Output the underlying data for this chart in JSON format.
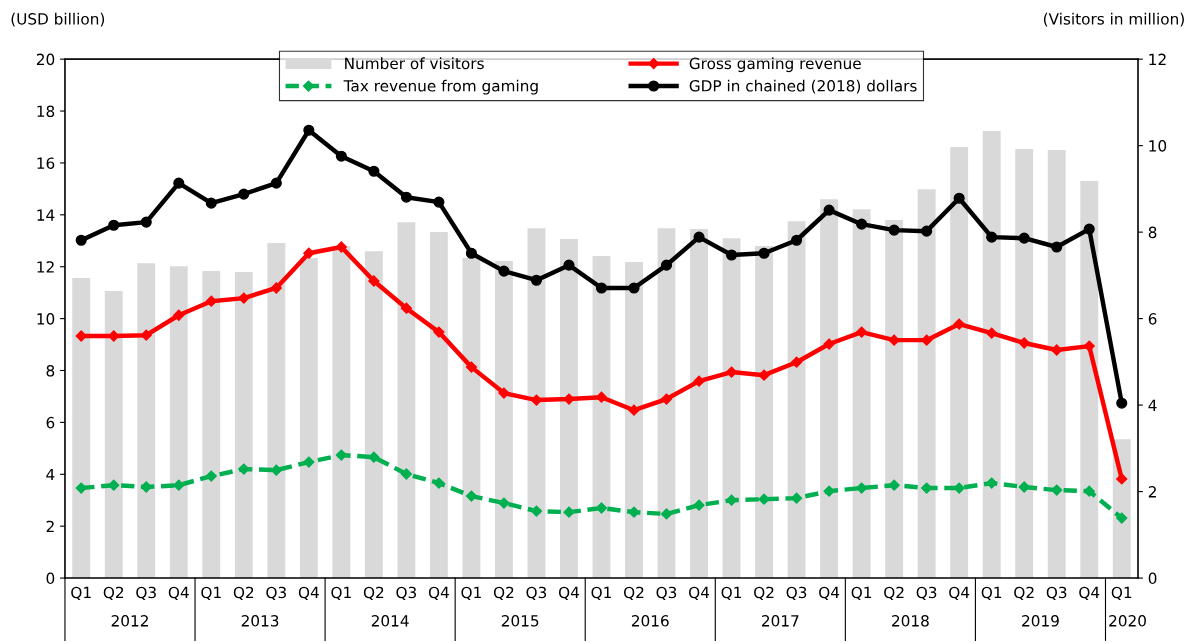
{
  "chart_data": {
    "type": "line",
    "categories": [
      "Q1",
      "Q2",
      "Q3",
      "Q4",
      "Q1",
      "Q2",
      "Q3",
      "Q4",
      "Q1",
      "Q2",
      "Q3",
      "Q4",
      "Q1",
      "Q2",
      "Q3",
      "Q4",
      "Q1",
      "Q2",
      "Q3",
      "Q4",
      "Q1",
      "Q2",
      "Q3",
      "Q4",
      "Q1",
      "Q2",
      "Q3",
      "Q4",
      "Q1",
      "Q2",
      "Q3",
      "Q4",
      "Q1"
    ],
    "ylabel": "(USD billion)",
    "y2label": "(Visitors in million)",
    "ylim": [
      0,
      20
    ],
    "yticks": [
      0,
      2,
      4,
      6,
      8,
      10,
      12,
      14,
      16,
      18,
      20
    ],
    "y2lim": [
      0,
      12
    ],
    "y2ticks": [
      0,
      2,
      4,
      6,
      8,
      10,
      12
    ],
    "grid": false,
    "legend": "top",
    "annotations": [
      "2012",
      "2013",
      "2014",
      "2015",
      "2016",
      "2017",
      "2018",
      "2019",
      "2020"
    ],
    "series": [
      {
        "name": "Number of visitors",
        "type": "bar",
        "axis": "y2",
        "color": "#d9d9d9",
        "values": [
          6.94,
          6.64,
          7.28,
          7.21,
          7.1,
          7.08,
          7.75,
          7.4,
          7.68,
          7.56,
          8.23,
          8.0,
          7.4,
          7.33,
          8.09,
          7.84,
          7.45,
          7.31,
          8.09,
          8.07,
          7.86,
          7.68,
          8.25,
          8.76,
          8.53,
          8.28,
          8.99,
          9.97,
          10.34,
          9.92,
          9.9,
          9.18,
          3.21
        ]
      },
      {
        "name": "Gross gaming revenue",
        "color": "#ff0000",
        "marker": "diamond",
        "line_style": "solid",
        "values": [
          9.33,
          9.33,
          9.36,
          10.13,
          10.67,
          10.79,
          11.18,
          12.52,
          12.76,
          11.45,
          10.4,
          9.48,
          8.13,
          7.13,
          6.86,
          6.9,
          6.97,
          6.47,
          6.9,
          7.59,
          7.94,
          7.82,
          8.32,
          9.02,
          9.48,
          9.17,
          9.17,
          9.79,
          9.44,
          9.06,
          8.79,
          8.94,
          3.82
        ]
      },
      {
        "name": "Tax revenue from gaming",
        "color": "#00b050",
        "marker": "diamond",
        "line_style": "dashed",
        "values": [
          3.47,
          3.58,
          3.51,
          3.58,
          3.93,
          4.2,
          4.16,
          4.47,
          4.74,
          4.66,
          4.01,
          3.66,
          3.16,
          2.89,
          2.58,
          2.54,
          2.7,
          2.54,
          2.47,
          2.81,
          3.0,
          3.04,
          3.08,
          3.35,
          3.47,
          3.58,
          3.47,
          3.47,
          3.66,
          3.51,
          3.39,
          3.35,
          2.31
        ]
      },
      {
        "name": "GDP in chained (2018) dollars",
        "color": "#000000",
        "marker": "circle",
        "line_style": "solid",
        "values": [
          13.02,
          13.6,
          13.72,
          15.22,
          14.45,
          14.8,
          15.22,
          17.26,
          16.26,
          15.68,
          14.68,
          14.49,
          12.52,
          11.83,
          11.48,
          12.06,
          11.18,
          11.18,
          12.06,
          13.14,
          12.45,
          12.52,
          13.02,
          14.18,
          13.64,
          13.41,
          13.37,
          14.64,
          13.14,
          13.1,
          12.76,
          13.45,
          6.74
        ]
      }
    ]
  }
}
